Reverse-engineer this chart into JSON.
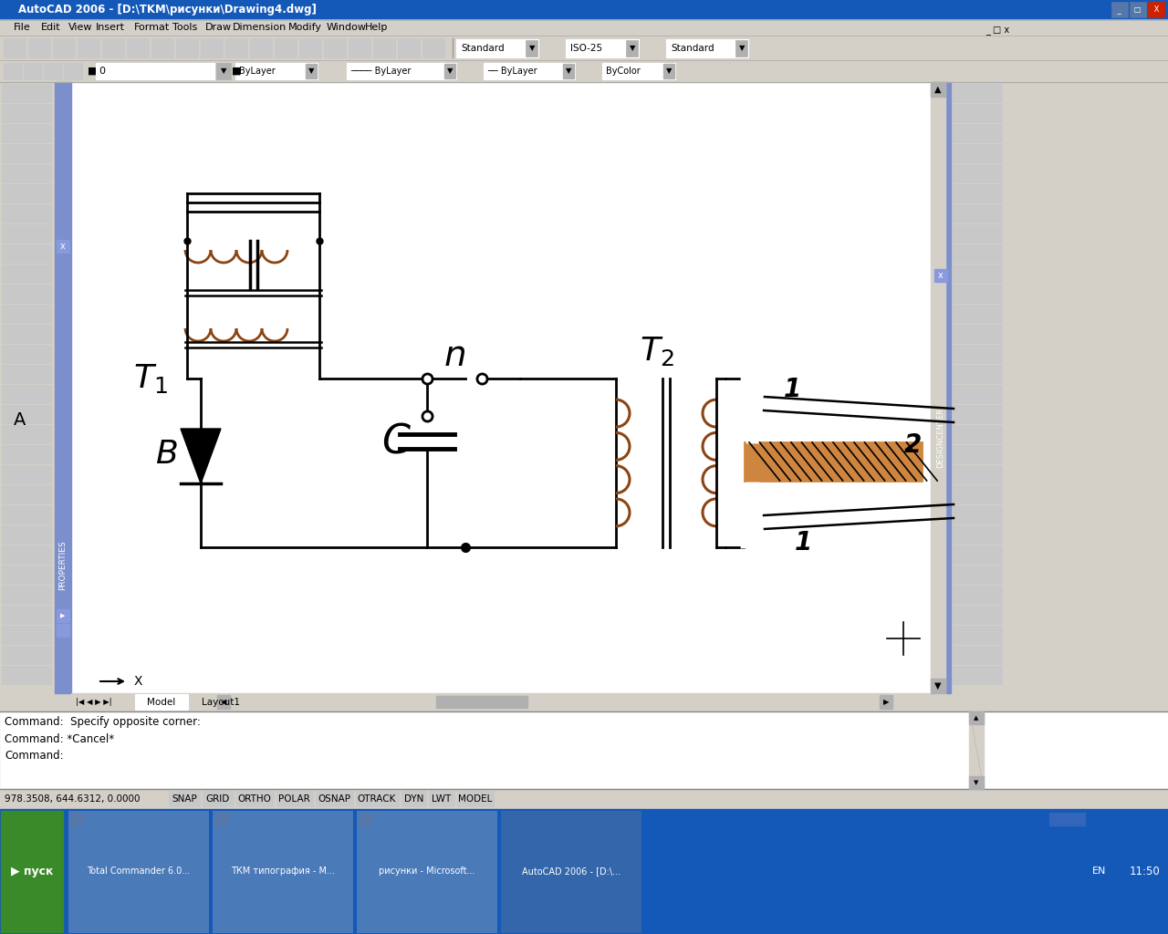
{
  "title": "AutoCAD 2006 - [D:\\TKM\\рисунки\\Drawing4.dwg]",
  "bg_color": "#d4d0c8",
  "canvas_color": "#ffffff",
  "circuit_line_color": "#000000",
  "coil_color": "#8B4513",
  "status_text1": "Command:  Specify opposite corner:",
  "status_text2": "Command: *Cancel*",
  "status_text3": "Command:",
  "coords_text": "978.3508, 644.6312, 0.0000",
  "statusbar_items": [
    "SNAP",
    "GRID",
    "ORTHO",
    "POLAR",
    "OSNAP",
    "OTRACK",
    "DYN",
    "LWT",
    "MODEL"
  ],
  "menu_items": [
    "File",
    "Edit",
    "View",
    "Insert",
    "Format",
    "Tools",
    "Draw",
    "Dimension",
    "Modify",
    "Window",
    "Help"
  ],
  "taskbar_apps": [
    "Total Commander 6.0...",
    "ТКМ типография - М...",
    "рисунки - Microsoft...",
    "AutoCAD 2006 - [D:\\..."
  ]
}
